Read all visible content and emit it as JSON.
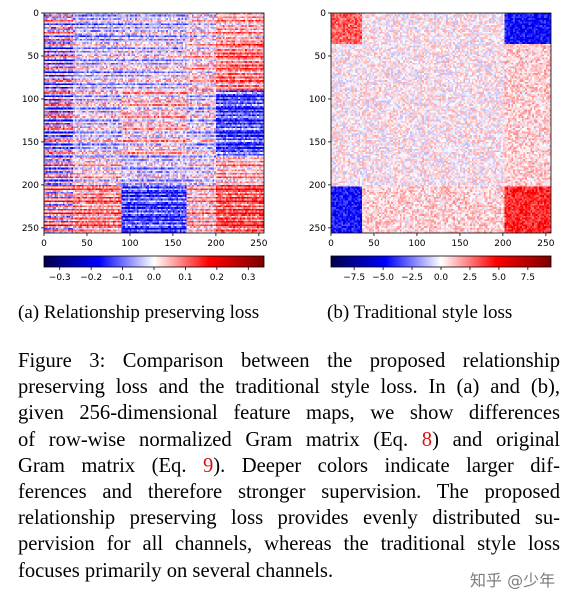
{
  "figure": {
    "panels": [
      {
        "id": "a",
        "caption": "(a) Relationship preserving loss",
        "heatmap": {
          "type": "heatmap",
          "size": 256,
          "x_ticks": [
            "0",
            "50",
            "100",
            "150",
            "200",
            "250"
          ],
          "y_ticks": [
            "0",
            "50",
            "100",
            "150",
            "200",
            "250"
          ],
          "colormap": "seismic",
          "colorbar_ticks": [
            "−0.3",
            "−0.2",
            "−0.1",
            "0.0",
            "0.1",
            "0.2",
            "0.3"
          ],
          "colorbar_range": [
            -0.35,
            0.35
          ]
        }
      },
      {
        "id": "b",
        "caption": "(b) Traditional style loss",
        "heatmap": {
          "type": "heatmap",
          "size": 256,
          "x_ticks": [
            "0",
            "50",
            "100",
            "150",
            "200",
            "250"
          ],
          "y_ticks": [
            "0",
            "50",
            "100",
            "150",
            "200",
            "250"
          ],
          "colormap": "seismic",
          "colorbar_ticks": [
            "−7.5",
            "−5.0",
            "−2.5",
            "0.0",
            "2.5",
            "5.0",
            "7.5"
          ],
          "colorbar_range": [
            -9.5,
            9.5
          ]
        }
      }
    ]
  },
  "caption": {
    "lines": [
      [
        "Figure 3:  Comparison between the proposed relationship"
      ],
      [
        "preserving loss and the traditional style loss. In (a) and (b),"
      ],
      [
        "given 256-dimensional feature maps, we show differences"
      ],
      [
        "of row-wise normalized Gram matrix (Eq. ",
        {
          "ref": "8"
        },
        ") and original"
      ],
      [
        "Gram matrix (Eq. ",
        {
          "ref": "9"
        },
        ").  Deeper colors indicate larger dif-"
      ],
      [
        "ferences and therefore stronger supervision.  The proposed"
      ],
      [
        "relationship preserving loss provides evenly distributed su-"
      ],
      [
        "pervision for all channels, whereas the traditional style loss"
      ],
      [
        "focuses primarily on several channels."
      ]
    ]
  },
  "watermark": "知乎 @少年"
}
